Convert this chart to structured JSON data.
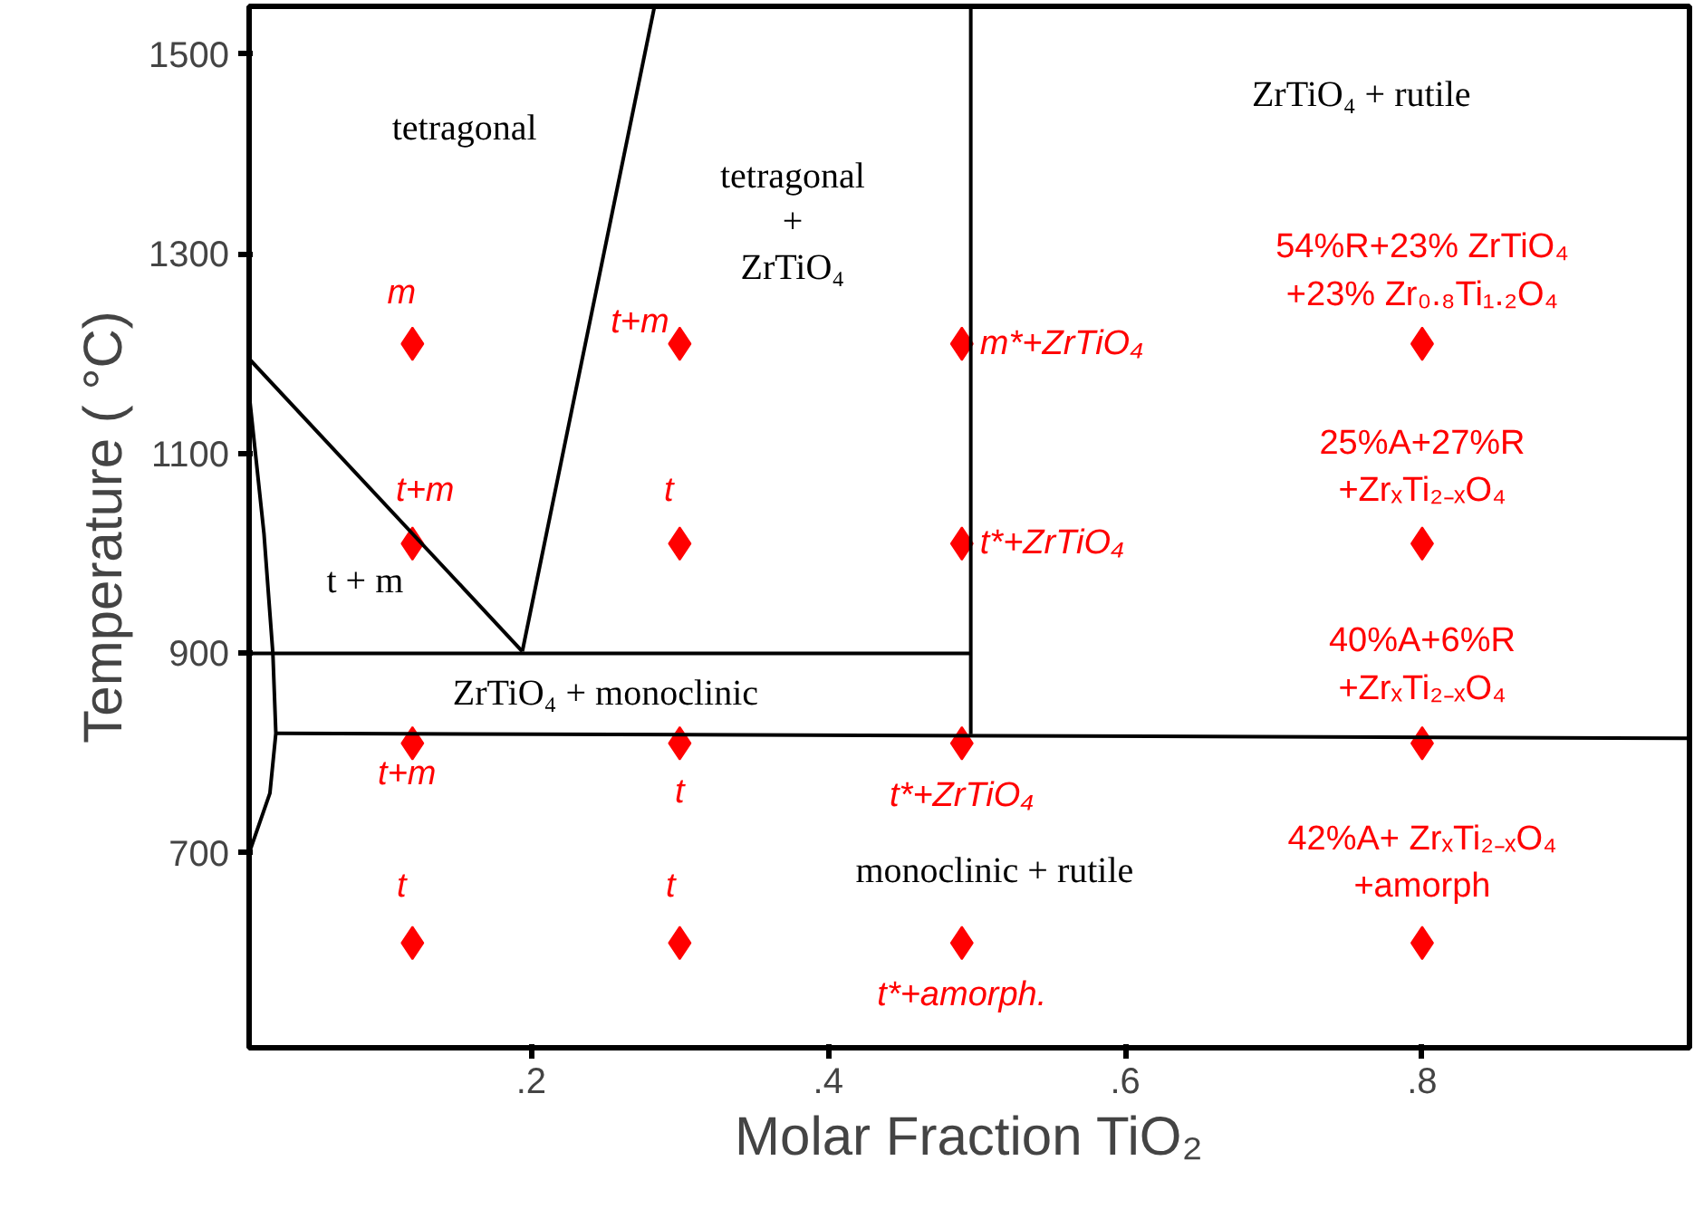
{
  "chart_data": {
    "type": "scatter",
    "xlabel": "Molar Fraction TiO₂",
    "ylabel": "Temperature ( °C)",
    "xlim": [
      0.01,
      0.98
    ],
    "ylim": [
      505,
      1548
    ],
    "xticks": [
      {
        "value": 0.2,
        "label": ".2"
      },
      {
        "value": 0.4,
        "label": ".4"
      },
      {
        "value": 0.6,
        "label": ".6"
      },
      {
        "value": 0.8,
        "label": ".8"
      }
    ],
    "yticks": [
      700,
      900,
      1100,
      1300,
      1500
    ],
    "grid": false,
    "series": [
      {
        "marker": "diamond",
        "color": "#ff0000",
        "x": [
          0.12,
          0.3,
          0.49,
          0.8,
          0.12,
          0.3,
          0.49,
          0.8,
          0.12,
          0.3,
          0.49,
          0.8,
          0.12,
          0.3,
          0.49,
          0.8
        ],
        "values": [
          1210,
          1210,
          1210,
          1210,
          1010,
          1010,
          1010,
          1010,
          810,
          810,
          810,
          810,
          610,
          610,
          610,
          610
        ]
      },
      {
        "type": "line",
        "color": "#000000",
        "x": [
          0.496,
          0.496
        ],
        "values": [
          1548,
          819
        ]
      },
      {
        "type": "line",
        "color": "#000000",
        "x": [
          0.01,
          0.496
        ],
        "values": [
          900,
          900
        ]
      },
      {
        "type": "line",
        "color": "#000000",
        "x": [
          0.028,
          0.98
        ],
        "values": [
          820,
          815
        ]
      },
      {
        "type": "line",
        "color": "#000000",
        "x": [
          0.01,
          0.194
        ],
        "values": [
          1195,
          902
        ]
      },
      {
        "type": "line",
        "color": "#000000",
        "x": [
          0.194,
          0.283
        ],
        "values": [
          902,
          1548
        ]
      },
      {
        "type": "line",
        "color": "#000000",
        "x": [
          0.01,
          0.02,
          0.026,
          0.028,
          0.024,
          0.01
        ],
        "values": [
          1160,
          1020,
          900,
          820,
          760,
          700
        ]
      }
    ],
    "annotations": [
      "tetragonal",
      "tetragonal\n+\nZrTiO₄",
      "ZrTiO₄ + rutile",
      "t + m",
      "ZrTiO₄ + monoclinic",
      "monoclinic + rutile",
      {
        "text": "m",
        "x": 0.12,
        "y": 1210
      },
      {
        "text": "t+m",
        "x": 0.3,
        "y": 1210
      },
      {
        "text": "m*+ZrTiO₄",
        "x": 0.49,
        "y": 1210
      },
      {
        "text": "54%R+23% ZrTiO₄\n+23% Zr₀.₈Ti₁.₂O₄",
        "x": 0.8,
        "y": 1210
      },
      {
        "text": "t+m",
        "x": 0.12,
        "y": 1010
      },
      {
        "text": "t",
        "x": 0.3,
        "y": 1010
      },
      {
        "text": "t*+ZrTiO₄",
        "x": 0.49,
        "y": 1010
      },
      {
        "text": "25%A+27%R\n+ZrₓTi₂₋ₓO₄",
        "x": 0.8,
        "y": 1010
      },
      {
        "text": "t+m",
        "x": 0.12,
        "y": 810
      },
      {
        "text": "t",
        "x": 0.3,
        "y": 810
      },
      {
        "text": "t*+ZrTiO₄",
        "x": 0.49,
        "y": 810
      },
      {
        "text": "40%A+6%R\n+ZrₓTi₂₋ₓO₄",
        "x": 0.8,
        "y": 810
      },
      {
        "text": "t",
        "x": 0.12,
        "y": 610
      },
      {
        "text": "t",
        "x": 0.3,
        "y": 610
      },
      {
        "text": "t*+amorph.",
        "x": 0.49,
        "y": 610
      },
      {
        "text": "42%A+ ZrₓTi₂₋ₓO₄\n+amorph",
        "x": 0.8,
        "y": 610
      }
    ]
  }
}
